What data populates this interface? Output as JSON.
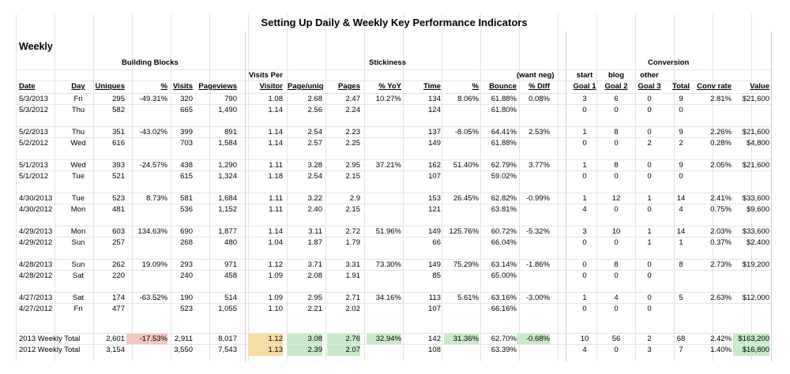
{
  "title": "Setting Up Daily & Weekly Key Performance Indicators",
  "section": "Weekly",
  "groups": {
    "building_blocks": "Building Blocks",
    "stickiness": "Stickiness",
    "conversion": "Conversion"
  },
  "header_top": {
    "visits_per": "Visits Per",
    "want_neg": "(want neg)",
    "start": "start",
    "blog": "blog",
    "other": "other"
  },
  "columns": [
    "Date",
    "Day",
    "Uniques",
    "%",
    "Visits",
    "Pageviews",
    "Visitor",
    "Page/uniq",
    "Pages",
    "% YoY",
    "Time",
    "%",
    "Bounce",
    "% Diff",
    "Goal 1",
    "Goal 2",
    "Goal 3",
    "Total",
    "Conv rate",
    "Value"
  ],
  "rows": [
    [
      "5/3/2013",
      "Fri",
      "295",
      "-49.31%",
      "320",
      "790",
      "1.08",
      "2.68",
      "2.47",
      "10.27%",
      "134",
      "8.06%",
      "61.88%",
      "0.08%",
      "3",
      "6",
      "0",
      "9",
      "2.81%",
      "$21,600"
    ],
    [
      "5/3/2012",
      "Thu",
      "582",
      "",
      "665",
      "1,490",
      "1.14",
      "2.56",
      "2.24",
      "",
      "124",
      "",
      "61.80%",
      "",
      "0",
      "0",
      "0",
      "0",
      "",
      ""
    ],
    [
      "5/2/2013",
      "Thu",
      "351",
      "-43.02%",
      "399",
      "891",
      "1.14",
      "2.54",
      "2.23",
      "",
      "137",
      "-8.05%",
      "64.41%",
      "2.53%",
      "1",
      "8",
      "0",
      "9",
      "2.26%",
      "$21,600"
    ],
    [
      "5/2/2012",
      "Wed",
      "616",
      "",
      "703",
      "1,584",
      "1.14",
      "2.57",
      "2.25",
      "",
      "149",
      "",
      "61.88%",
      "",
      "0",
      "0",
      "2",
      "2",
      "0.28%",
      "$4,800"
    ],
    [
      "5/1/2013",
      "Wed",
      "393",
      "-24.57%",
      "438",
      "1,290",
      "1.11",
      "3.28",
      "2.95",
      "37.21%",
      "162",
      "51.40%",
      "62.79%",
      "3.77%",
      "1",
      "8",
      "0",
      "9",
      "2.05%",
      "$21,600"
    ],
    [
      "5/1/2012",
      "Tue",
      "521",
      "",
      "615",
      "1,324",
      "1.18",
      "2.54",
      "2.15",
      "",
      "107",
      "",
      "59.02%",
      "",
      "0",
      "0",
      "0",
      "0",
      "",
      ""
    ],
    [
      "4/30/2013",
      "Tue",
      "523",
      "8.73%",
      "581",
      "1,684",
      "1.11",
      "3.22",
      "2.9",
      "",
      "153",
      "26.45%",
      "62.82%",
      "-0.99%",
      "1",
      "12",
      "1",
      "14",
      "2.41%",
      "$33,600"
    ],
    [
      "4/30/2012",
      "Mon",
      "481",
      "",
      "536",
      "1,152",
      "1.11",
      "2.40",
      "2.15",
      "",
      "121",
      "",
      "63.81%",
      "",
      "4",
      "0",
      "0",
      "4",
      "0.75%",
      "$9,600"
    ],
    [
      "4/29/2013",
      "Mon",
      "603",
      "134.63%",
      "690",
      "1,877",
      "1.14",
      "3.11",
      "2.72",
      "51.96%",
      "149",
      "125.76%",
      "60.72%",
      "-5.32%",
      "3",
      "10",
      "1",
      "14",
      "2.03%",
      "$33,600"
    ],
    [
      "4/29/2012",
      "Sun",
      "257",
      "",
      "268",
      "480",
      "1.04",
      "1.87",
      "1.79",
      "",
      "66",
      "",
      "66.04%",
      "",
      "0",
      "0",
      "1",
      "1",
      "0.37%",
      "$2,400"
    ],
    [
      "4/28/2013",
      "Sun",
      "262",
      "19.09%",
      "293",
      "971",
      "1.12",
      "3.71",
      "3.31",
      "73.30%",
      "149",
      "75.29%",
      "63.14%",
      "-1.86%",
      "0",
      "8",
      "0",
      "8",
      "2.73%",
      "$19,200"
    ],
    [
      "4/28/2012",
      "Sat",
      "220",
      "",
      "240",
      "458",
      "1.09",
      "2.08",
      "1.91",
      "",
      "85",
      "",
      "65.00%",
      "",
      "0",
      "0",
      "0",
      "",
      "",
      ""
    ],
    [
      "4/27/2013",
      "Sat",
      "174",
      "-63.52%",
      "190",
      "514",
      "1.09",
      "2.95",
      "2.71",
      "34.16%",
      "113",
      "5.61%",
      "63.16%",
      "-3.00%",
      "1",
      "4",
      "0",
      "5",
      "2.63%",
      "$12,000"
    ],
    [
      "4/27/2012",
      "Fri",
      "477",
      "",
      "523",
      "1,055",
      "1.10",
      "2.21",
      "2.02",
      "",
      "107",
      "",
      "66.16%",
      "",
      "0",
      "0",
      "0",
      "",
      "",
      ""
    ]
  ],
  "totals": [
    [
      "2013 Weekly Total",
      "",
      "2,601",
      "-17.53%",
      "2,911",
      "8,017",
      "1.12",
      "3.08",
      "2.76",
      "32.94%",
      "142",
      "31.36%",
      "62.70%",
      "-0.68%",
      "10",
      "56",
      "2",
      "68",
      "2.42%",
      "$163,200"
    ],
    [
      "2012 Weekly Total",
      "",
      "3,154",
      "",
      "3,550",
      "7,543",
      "1.13",
      "2.39",
      "2.07",
      "",
      "108",
      "",
      "63.39%",
      "",
      "4",
      "0",
      "3",
      "7",
      "1.40%",
      "$16,800"
    ]
  ]
}
